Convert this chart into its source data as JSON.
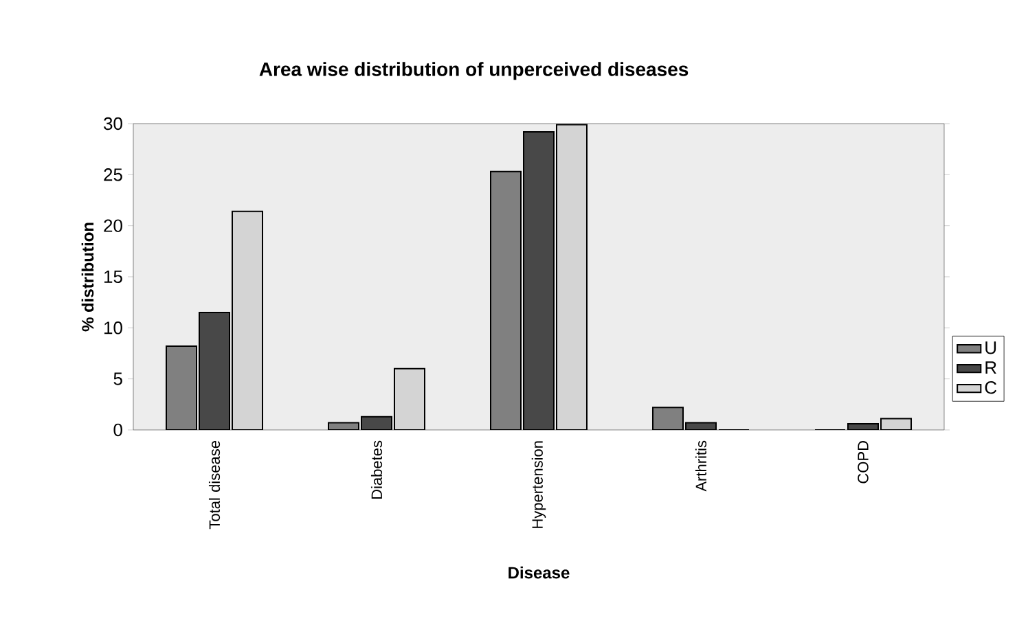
{
  "chart_data": {
    "type": "bar",
    "title": "Area wise distribution of unperceived diseases",
    "xlabel": "Disease",
    "ylabel": "% distribution",
    "categories": [
      "Total disease",
      "Diabetes",
      "Hypertension",
      "Arthritis",
      "COPD"
    ],
    "series": [
      {
        "name": "U",
        "color": "#808080",
        "values": [
          8.2,
          0.7,
          25.3,
          2.2,
          0
        ]
      },
      {
        "name": "R",
        "color": "#484848",
        "values": [
          11.5,
          1.3,
          29.2,
          0.7,
          0.6
        ]
      },
      {
        "name": "C",
        "color": "#d4d4d4",
        "values": [
          21.4,
          6.0,
          29.9,
          0,
          1.1
        ]
      }
    ],
    "ylim": [
      0,
      30
    ],
    "yticks": [
      0,
      5,
      10,
      15,
      20,
      25,
      30
    ],
    "grid": false,
    "legend": "right"
  }
}
